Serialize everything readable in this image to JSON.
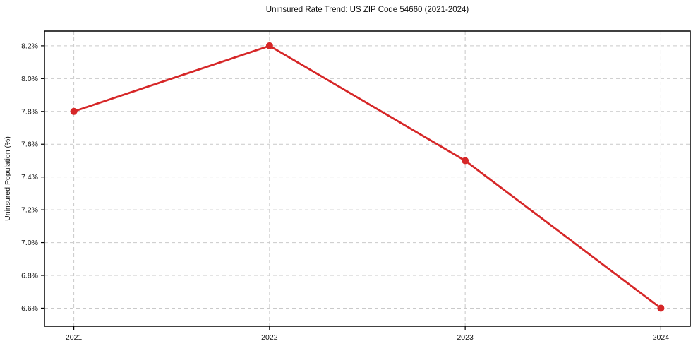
{
  "chart_data": {
    "type": "line",
    "title": "Uninsured Rate Trend: US ZIP Code 54660 (2021-2024)",
    "xlabel": "",
    "ylabel": "Uninsured Population (%)",
    "x": [
      2021,
      2022,
      2023,
      2024
    ],
    "series": [
      {
        "name": "Uninsured Population (%)",
        "values": [
          7.8,
          8.2,
          7.5,
          6.6
        ],
        "color": "#d62728",
        "marker": "circle",
        "line_width": 2.8,
        "marker_radius": 5
      }
    ],
    "xticks": [
      2021,
      2022,
      2023,
      2024
    ],
    "xtick_labels": [
      "2021",
      "2022",
      "2023",
      "2024"
    ],
    "yticks": [
      6.6,
      6.8,
      7.0,
      7.2,
      7.4,
      7.6,
      7.8,
      8.0,
      8.2
    ],
    "ytick_labels": [
      "6.6%",
      "6.8%",
      "7.0%",
      "7.2%",
      "7.4%",
      "7.6%",
      "7.8%",
      "8.0%",
      "8.2%"
    ],
    "xlim": [
      2020.85,
      2024.15
    ],
    "ylim": [
      6.49,
      8.29
    ],
    "grid": true,
    "grid_style": "dashed",
    "grid_color": "#c9c9c9",
    "spine_color": "#000000",
    "tick_color": "#000000",
    "background": "#ffffff",
    "legend": false
  }
}
